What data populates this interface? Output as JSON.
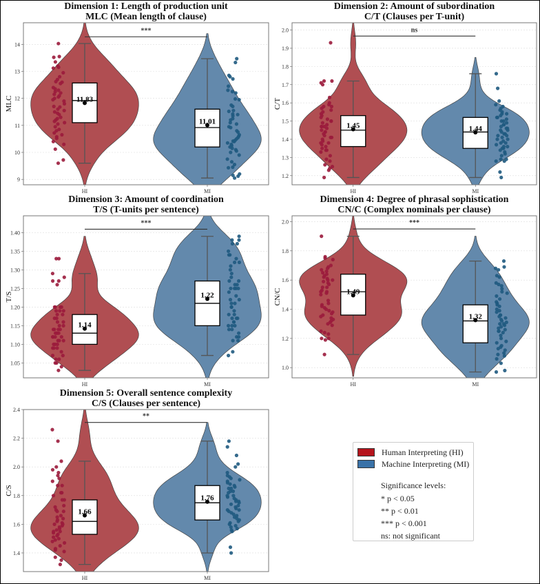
{
  "chart_data": [
    {
      "type": "violin",
      "title": "Dimension 1: Length of production unit",
      "subtitle": "MLC (Mean length of clause)",
      "ylabel": "MLC",
      "xlabel": "",
      "categories": [
        "HI",
        "MI"
      ],
      "ylim": [
        8.8,
        14.8
      ],
      "yticks": [
        9,
        10,
        11,
        12,
        13,
        14
      ],
      "ytick_labels": [
        "9",
        "10",
        "11",
        "12",
        "13",
        "14"
      ],
      "grid": true,
      "significance": "***",
      "sig_y": 14.28,
      "series": [
        {
          "name": "HI",
          "mean": 11.83,
          "mean_label": "11.83",
          "q1": 11.1,
          "median": 11.92,
          "q3": 12.57,
          "whisker_low": 9.6,
          "whisker_high": 14.03,
          "violin_min": 8.8,
          "violin_max": 14.8,
          "violin_peak": 11.95,
          "points": [
            14.03,
            13.55,
            13.52,
            13.35,
            13.2,
            13.15,
            13.12,
            12.95,
            12.8,
            12.7,
            12.62,
            12.6,
            12.55,
            12.4,
            12.3,
            12.25,
            12.2,
            12.15,
            12.1,
            12.05,
            12.0,
            11.95,
            11.9,
            11.8,
            11.7,
            11.6,
            11.55,
            11.5,
            11.45,
            11.4,
            11.3,
            11.2,
            11.15,
            11.1,
            11.05,
            10.95,
            10.85,
            10.8,
            10.72,
            10.65,
            10.58,
            10.52,
            10.4,
            10.3,
            10.12,
            9.72,
            9.6,
            12.35,
            11.68,
            11.25
          ]
        },
        {
          "name": "MI",
          "mean": 11.01,
          "mean_label": "11.01",
          "q1": 10.2,
          "median": 10.92,
          "q3": 11.6,
          "whisker_low": 9.05,
          "whisker_high": 13.47,
          "violin_min": 8.8,
          "violin_max": 14.4,
          "violin_peak": 10.5,
          "points": [
            13.47,
            13.33,
            12.85,
            12.8,
            12.72,
            12.45,
            12.3,
            12.25,
            12.2,
            11.98,
            11.95,
            11.75,
            11.7,
            11.55,
            11.42,
            11.4,
            11.35,
            11.25,
            11.2,
            11.1,
            11.05,
            10.95,
            10.92,
            10.8,
            10.75,
            10.65,
            10.6,
            10.55,
            10.5,
            10.45,
            10.4,
            10.35,
            10.3,
            10.25,
            10.2,
            10.15,
            10.1,
            10.05,
            10.0,
            9.9,
            9.75,
            9.65,
            9.55,
            9.45,
            9.43,
            9.2,
            9.15,
            9.12,
            9.05,
            10.42,
            11.52
          ]
        }
      ]
    },
    {
      "type": "violin",
      "title": "Dimension 2: Amount of subordination",
      "subtitle": "C/T (Clauses per T-unit)",
      "ylabel": "C/T",
      "xlabel": "",
      "categories": [
        "HI",
        "MI"
      ],
      "ylim": [
        1.15,
        2.04
      ],
      "yticks": [
        1.2,
        1.3,
        1.4,
        1.5,
        1.6,
        1.7,
        1.8,
        1.9,
        2.0
      ],
      "ytick_labels": [
        "1.2",
        "1.3",
        "1.4",
        "1.5",
        "1.6",
        "1.7",
        "1.8",
        "1.9",
        "2.0"
      ],
      "grid": true,
      "significance": "ns",
      "sig_y": 1.967,
      "series": [
        {
          "name": "HI",
          "mean": 1.455,
          "mean_label": "1.45",
          "q1": 1.36,
          "median": 1.45,
          "q3": 1.53,
          "whisker_low": 1.19,
          "whisker_high": 1.72,
          "violin_min": 1.15,
          "violin_max": 2.04,
          "violin_peak": 1.44,
          "points": [
            1.93,
            1.72,
            1.72,
            1.71,
            1.7,
            1.63,
            1.6,
            1.59,
            1.58,
            1.58,
            1.56,
            1.55,
            1.54,
            1.53,
            1.52,
            1.51,
            1.5,
            1.5,
            1.49,
            1.48,
            1.47,
            1.47,
            1.46,
            1.45,
            1.44,
            1.43,
            1.42,
            1.41,
            1.4,
            1.39,
            1.38,
            1.38,
            1.37,
            1.36,
            1.35,
            1.34,
            1.34,
            1.33,
            1.31,
            1.29,
            1.28,
            1.26,
            1.25,
            1.24,
            1.23,
            1.19,
            1.44,
            1.47,
            1.41,
            1.57
          ]
        },
        {
          "name": "MI",
          "mean": 1.438,
          "mean_label": "1.44",
          "q1": 1.35,
          "median": 1.44,
          "q3": 1.52,
          "whisker_low": 1.19,
          "whisker_high": 1.76,
          "violin_min": 1.15,
          "violin_max": 1.85,
          "violin_peak": 1.44,
          "points": [
            1.76,
            1.68,
            1.61,
            1.59,
            1.58,
            1.57,
            1.56,
            1.55,
            1.54,
            1.54,
            1.53,
            1.52,
            1.51,
            1.5,
            1.5,
            1.49,
            1.48,
            1.47,
            1.46,
            1.46,
            1.45,
            1.44,
            1.43,
            1.43,
            1.42,
            1.41,
            1.4,
            1.39,
            1.38,
            1.38,
            1.37,
            1.36,
            1.35,
            1.35,
            1.34,
            1.33,
            1.32,
            1.31,
            1.29,
            1.29,
            1.28,
            1.28,
            1.22,
            1.19,
            1.45,
            1.48,
            1.4,
            1.36,
            1.52,
            1.42
          ]
        }
      ]
    },
    {
      "type": "violin",
      "title": "Dimension 3: Amount of coordination",
      "subtitle": "T/S (T-units per sentence)",
      "ylabel": "T/S",
      "xlabel": "",
      "categories": [
        "HI",
        "MI"
      ],
      "ylim": [
        1.01,
        1.445
      ],
      "yticks": [
        1.05,
        1.1,
        1.15,
        1.2,
        1.25,
        1.3,
        1.35,
        1.4
      ],
      "ytick_labels": [
        "1.05",
        "1.10",
        "1.15",
        "1.20",
        "1.25",
        "1.30",
        "1.35",
        "1.40"
      ],
      "grid": true,
      "significance": "***",
      "sig_y": 1.409,
      "series": [
        {
          "name": "HI",
          "mean": 1.142,
          "mean_label": "1.14",
          "q1": 1.1,
          "median": 1.13,
          "q3": 1.18,
          "whisker_low": 1.03,
          "whisker_high": 1.29,
          "violin_min": 1.01,
          "violin_max": 1.39,
          "violin_peak": 1.125,
          "points": [
            1.33,
            1.33,
            1.29,
            1.28,
            1.27,
            1.27,
            1.26,
            1.2,
            1.2,
            1.2,
            1.2,
            1.19,
            1.19,
            1.19,
            1.18,
            1.18,
            1.17,
            1.17,
            1.16,
            1.15,
            1.15,
            1.14,
            1.14,
            1.14,
            1.13,
            1.13,
            1.13,
            1.13,
            1.12,
            1.12,
            1.12,
            1.11,
            1.11,
            1.11,
            1.1,
            1.1,
            1.1,
            1.09,
            1.09,
            1.09,
            1.08,
            1.07,
            1.07,
            1.06,
            1.06,
            1.05,
            1.05,
            1.04,
            1.03,
            1.12,
            1.14,
            1.16
          ]
        },
        {
          "name": "MI",
          "mean": 1.222,
          "mean_label": "1.22",
          "q1": 1.15,
          "median": 1.21,
          "q3": 1.27,
          "whisker_low": 1.07,
          "whisker_high": 1.39,
          "violin_min": 1.01,
          "violin_max": 1.445,
          "violin_peak": 1.16,
          "points": [
            1.39,
            1.38,
            1.38,
            1.37,
            1.37,
            1.35,
            1.34,
            1.34,
            1.33,
            1.32,
            1.32,
            1.31,
            1.29,
            1.28,
            1.27,
            1.27,
            1.26,
            1.26,
            1.25,
            1.25,
            1.25,
            1.24,
            1.23,
            1.22,
            1.21,
            1.21,
            1.2,
            1.19,
            1.18,
            1.18,
            1.17,
            1.17,
            1.17,
            1.16,
            1.16,
            1.15,
            1.15,
            1.15,
            1.14,
            1.14,
            1.13,
            1.12,
            1.12,
            1.11,
            1.11,
            1.08,
            1.07,
            1.25,
            1.2,
            1.22,
            1.3
          ]
        }
      ]
    },
    {
      "type": "violin",
      "title": "Dimension 4: Degree of phrasal sophistication",
      "subtitle": "CN/C (Complex nominals per clause)",
      "ylabel": "CN/C",
      "xlabel": "",
      "categories": [
        "HI",
        "MI"
      ],
      "ylim": [
        0.93,
        2.04
      ],
      "yticks": [
        1.0,
        1.2,
        1.4,
        1.6,
        1.8,
        2.0
      ],
      "ytick_labels": [
        "1.0",
        "1.2",
        "1.4",
        "1.6",
        "1.8",
        "2.0"
      ],
      "grid": true,
      "significance": "***",
      "sig_y": 1.95,
      "series": [
        {
          "name": "HI",
          "mean": 1.495,
          "mean_label": "1.49",
          "q1": 1.36,
          "median": 1.52,
          "q3": 1.64,
          "whisker_low": 1.09,
          "whisker_high": 1.9,
          "violin_min": 0.94,
          "violin_max": 2.04,
          "violin_peak": 1.6,
          "points": [
            1.9,
            1.76,
            1.75,
            1.74,
            1.7,
            1.69,
            1.68,
            1.67,
            1.66,
            1.65,
            1.64,
            1.63,
            1.62,
            1.61,
            1.6,
            1.59,
            1.58,
            1.57,
            1.55,
            1.53,
            1.52,
            1.52,
            1.51,
            1.5,
            1.44,
            1.43,
            1.42,
            1.41,
            1.4,
            1.39,
            1.38,
            1.37,
            1.36,
            1.35,
            1.34,
            1.33,
            1.32,
            1.31,
            1.3,
            1.29,
            1.25,
            1.24,
            1.23,
            1.2,
            1.2,
            1.19,
            1.09,
            1.6,
            1.46,
            1.55
          ]
        },
        {
          "name": "MI",
          "mean": 1.325,
          "mean_label": "1.32",
          "q1": 1.17,
          "median": 1.32,
          "q3": 1.43,
          "whisker_low": 0.97,
          "whisker_high": 1.73,
          "violin_min": 0.93,
          "violin_max": 1.9,
          "violin_peak": 1.31,
          "points": [
            1.73,
            1.69,
            1.68,
            1.67,
            1.63,
            1.62,
            1.58,
            1.57,
            1.56,
            1.54,
            1.52,
            1.51,
            1.49,
            1.47,
            1.45,
            1.44,
            1.43,
            1.42,
            1.4,
            1.39,
            1.38,
            1.36,
            1.35,
            1.34,
            1.33,
            1.32,
            1.31,
            1.3,
            1.3,
            1.29,
            1.28,
            1.27,
            1.26,
            1.25,
            1.24,
            1.22,
            1.2,
            1.18,
            1.17,
            1.15,
            1.14,
            1.13,
            1.12,
            1.1,
            1.09,
            1.08,
            1.06,
            1.03,
            0.98,
            0.97,
            1.36,
            1.25
          ]
        }
      ]
    },
    {
      "type": "violin",
      "title": "Dimension 5: Overall sentence complexity",
      "subtitle": "C/S (Clauses per sentence)",
      "ylabel": "C/S",
      "xlabel": "",
      "categories": [
        "HI",
        "MI"
      ],
      "ylim": [
        1.27,
        2.4
      ],
      "yticks": [
        1.4,
        1.6,
        1.8,
        2.0,
        2.2,
        2.4
      ],
      "ytick_labels": [
        "1.4",
        "1.6",
        "1.8",
        "2.0",
        "2.2",
        "2.4"
      ],
      "grid": true,
      "significance": "**",
      "sig_y": 2.31,
      "series": [
        {
          "name": "HI",
          "mean": 1.662,
          "mean_label": "1.66",
          "q1": 1.53,
          "median": 1.62,
          "q3": 1.77,
          "whisker_low": 1.32,
          "whisker_high": 2.04,
          "violin_min": 1.27,
          "violin_max": 2.4,
          "violin_peak": 1.58,
          "points": [
            2.26,
            2.18,
            2.04,
            2.0,
            1.98,
            1.96,
            1.94,
            1.92,
            1.9,
            1.87,
            1.87,
            1.82,
            1.82,
            1.8,
            1.77,
            1.77,
            1.73,
            1.72,
            1.7,
            1.69,
            1.69,
            1.66,
            1.64,
            1.63,
            1.62,
            1.61,
            1.6,
            1.59,
            1.58,
            1.57,
            1.56,
            1.55,
            1.54,
            1.53,
            1.52,
            1.51,
            1.5,
            1.49,
            1.48,
            1.47,
            1.45,
            1.43,
            1.42,
            1.41,
            1.37,
            1.35,
            1.32,
            1.65,
            1.6,
            1.55
          ]
        },
        {
          "name": "MI",
          "mean": 1.757,
          "mean_label": "1.76",
          "q1": 1.63,
          "median": 1.75,
          "q3": 1.87,
          "whisker_low": 1.4,
          "whisker_high": 2.18,
          "violin_min": 1.27,
          "violin_max": 2.31,
          "violin_peak": 1.72,
          "points": [
            2.18,
            2.14,
            2.08,
            2.02,
            2.0,
            1.96,
            1.94,
            1.93,
            1.92,
            1.91,
            1.9,
            1.89,
            1.88,
            1.87,
            1.86,
            1.85,
            1.83,
            1.83,
            1.82,
            1.8,
            1.79,
            1.78,
            1.77,
            1.76,
            1.75,
            1.74,
            1.73,
            1.72,
            1.71,
            1.7,
            1.69,
            1.68,
            1.67,
            1.66,
            1.65,
            1.64,
            1.63,
            1.62,
            1.61,
            1.6,
            1.59,
            1.58,
            1.57,
            1.56,
            1.55,
            1.44,
            1.4,
            1.76,
            1.7,
            1.8,
            1.85
          ]
        }
      ]
    }
  ],
  "colors": {
    "hi_violin": "#b04e52",
    "mi_violin": "#6389ac",
    "hi_point": "#9b1b3c",
    "mi_point": "#1f5a80",
    "hi_legend": "#b5141c",
    "mi_legend": "#3a72a8"
  },
  "legend": {
    "items": [
      {
        "label": "Human Interpreting (HI)",
        "color_key": "hi_legend"
      },
      {
        "label": "Machine Interpreting (MI)",
        "color_key": "mi_legend"
      }
    ],
    "sig_title": "Significance levels:",
    "sig_levels": [
      "* p < 0.05",
      "** p < 0.01",
      "*** p < 0.001",
      "ns: not significant"
    ]
  }
}
